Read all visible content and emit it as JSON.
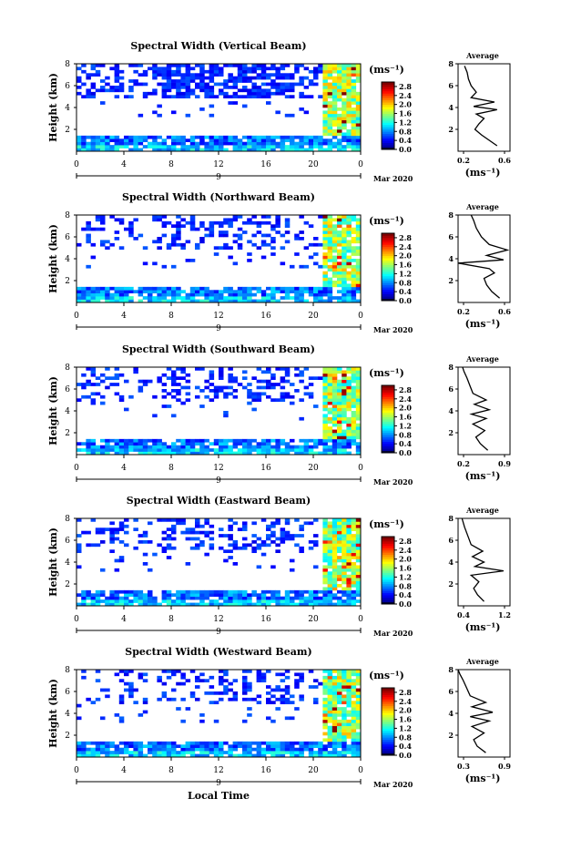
{
  "chart_data": [
    {
      "type": "heatmap",
      "title": "Spectral Width (Vertical Beam)",
      "ylabel": "Height (km)",
      "xlim": [
        0,
        24
      ],
      "ylim": [
        0,
        8
      ],
      "x_ticks": [
        "0",
        "4",
        "8",
        "12",
        "16",
        "20",
        "0"
      ],
      "y_ticks": [
        "2",
        "4",
        "6",
        "8"
      ],
      "date_label": "9",
      "month_label": "Mar 2020",
      "colorbar": {
        "unit": "(ms⁻¹)",
        "ticks": [
          "0.0",
          "0.4",
          "0.8",
          "1.2",
          "1.6",
          "2.0",
          "2.4",
          "2.8"
        ],
        "range": [
          0,
          3.0
        ]
      },
      "average": {
        "title": "Average",
        "xlabel": "(ms⁻¹)",
        "x_ticks": [
          "0.2",
          "0.6"
        ],
        "xlim": [
          0.2,
          0.6
        ],
        "y_ticks": [
          "2",
          "4",
          "6",
          "8"
        ],
        "ylim": [
          0,
          8
        ],
        "profile": [
          [
            0.5,
            0.5
          ],
          [
            0.44,
            1.0
          ],
          [
            0.38,
            1.5
          ],
          [
            0.33,
            2.0
          ],
          [
            0.36,
            2.5
          ],
          [
            0.4,
            3.0
          ],
          [
            0.34,
            3.4
          ],
          [
            0.5,
            3.8
          ],
          [
            0.32,
            4.1
          ],
          [
            0.48,
            4.5
          ],
          [
            0.3,
            4.9
          ],
          [
            0.34,
            5.4
          ],
          [
            0.3,
            6.0
          ],
          [
            0.28,
            6.6
          ],
          [
            0.27,
            7.2
          ],
          [
            0.25,
            7.8
          ]
        ]
      }
    },
    {
      "type": "heatmap",
      "title": "Spectral Width (Northward Beam)",
      "ylabel": "Height (km)",
      "xlim": [
        0,
        24
      ],
      "ylim": [
        0,
        8
      ],
      "x_ticks": [
        "0",
        "4",
        "8",
        "12",
        "16",
        "20",
        "0"
      ],
      "y_ticks": [
        "2",
        "4",
        "6",
        "8"
      ],
      "date_label": "9",
      "month_label": "Mar 2020",
      "colorbar": {
        "unit": "(ms⁻¹)",
        "ticks": [
          "0.0",
          "0.4",
          "0.8",
          "1.2",
          "1.6",
          "2.0",
          "2.4",
          "2.8"
        ],
        "range": [
          0,
          3.0
        ]
      },
      "average": {
        "title": "Average",
        "xlabel": "(ms⁻¹)",
        "x_ticks": [
          "0.2",
          "0.6"
        ],
        "xlim": [
          0.2,
          0.6
        ],
        "y_ticks": [
          "2",
          "4",
          "6",
          "8"
        ],
        "ylim": [
          0,
          8
        ],
        "profile": [
          [
            0.52,
            0.4
          ],
          [
            0.46,
            1.0
          ],
          [
            0.42,
            1.6
          ],
          [
            0.4,
            2.2
          ],
          [
            0.48,
            2.7
          ],
          [
            0.44,
            3.1
          ],
          [
            0.2,
            3.6
          ],
          [
            0.55,
            3.9
          ],
          [
            0.42,
            4.3
          ],
          [
            0.58,
            4.8
          ],
          [
            0.44,
            5.3
          ],
          [
            0.38,
            6.0
          ],
          [
            0.34,
            6.8
          ],
          [
            0.32,
            7.5
          ],
          [
            0.3,
            8.0
          ]
        ]
      }
    },
    {
      "type": "heatmap",
      "title": "Spectral Width (Southward Beam)",
      "ylabel": "Height (km)",
      "xlim": [
        0,
        24
      ],
      "ylim": [
        0,
        8
      ],
      "x_ticks": [
        "0",
        "4",
        "8",
        "12",
        "16",
        "20",
        "0"
      ],
      "y_ticks": [
        "2",
        "4",
        "6",
        "8"
      ],
      "date_label": "9",
      "month_label": "Mar 2020",
      "colorbar": {
        "unit": "(ms⁻¹)",
        "ticks": [
          "0.0",
          "0.4",
          "0.8",
          "1.2",
          "1.6",
          "2.0",
          "2.4",
          "2.8"
        ],
        "range": [
          0,
          3.0
        ]
      },
      "average": {
        "title": "Average",
        "xlabel": "(ms⁻¹)",
        "x_ticks": [
          "0.2",
          "0.9"
        ],
        "xlim": [
          0.2,
          0.9
        ],
        "y_ticks": [
          "2",
          "4",
          "6",
          "8"
        ],
        "ylim": [
          0,
          8
        ],
        "profile": [
          [
            0.6,
            0.4
          ],
          [
            0.5,
            1.0
          ],
          [
            0.44,
            1.6
          ],
          [
            0.56,
            2.2
          ],
          [
            0.4,
            2.8
          ],
          [
            0.58,
            3.3
          ],
          [
            0.38,
            3.7
          ],
          [
            0.62,
            4.1
          ],
          [
            0.42,
            4.6
          ],
          [
            0.58,
            5.0
          ],
          [
            0.4,
            5.6
          ],
          [
            0.36,
            6.3
          ],
          [
            0.32,
            7.0
          ],
          [
            0.28,
            7.6
          ],
          [
            0.26,
            8.0
          ]
        ]
      }
    },
    {
      "type": "heatmap",
      "title": "Spectral Width (Eastward Beam)",
      "ylabel": "Height (km)",
      "xlim": [
        0,
        24
      ],
      "ylim": [
        0,
        8
      ],
      "x_ticks": [
        "0",
        "4",
        "8",
        "12",
        "16",
        "20",
        "0"
      ],
      "y_ticks": [
        "2",
        "4",
        "6",
        "8"
      ],
      "date_label": "9",
      "month_label": "Mar 2020",
      "colorbar": {
        "unit": "(ms⁻¹)",
        "ticks": [
          "0.0",
          "0.4",
          "0.8",
          "1.2",
          "1.6",
          "2.0",
          "2.4",
          "2.8"
        ],
        "range": [
          0,
          3.0
        ]
      },
      "average": {
        "title": "Average",
        "xlabel": "(ms⁻¹)",
        "x_ticks": [
          "0.4",
          "1.2"
        ],
        "xlim": [
          0.4,
          1.2
        ],
        "y_ticks": [
          "2",
          "4",
          "6",
          "8"
        ],
        "ylim": [
          0,
          8
        ],
        "profile": [
          [
            0.8,
            0.4
          ],
          [
            0.7,
            1.0
          ],
          [
            0.64,
            1.6
          ],
          [
            0.72,
            2.2
          ],
          [
            0.6,
            2.8
          ],
          [
            1.1,
            3.2
          ],
          [
            0.66,
            3.6
          ],
          [
            0.8,
            4.0
          ],
          [
            0.62,
            4.5
          ],
          [
            0.78,
            5.0
          ],
          [
            0.6,
            5.6
          ],
          [
            0.55,
            6.4
          ],
          [
            0.5,
            7.2
          ],
          [
            0.46,
            8.0
          ]
        ]
      }
    },
    {
      "type": "heatmap",
      "title": "Spectral Width (Westward Beam)",
      "ylabel": "Height (km)",
      "xlabel": "Local Time",
      "xlim": [
        0,
        24
      ],
      "ylim": [
        0,
        8
      ],
      "x_ticks": [
        "0",
        "4",
        "8",
        "12",
        "16",
        "20",
        "0"
      ],
      "y_ticks": [
        "2",
        "4",
        "6",
        "8"
      ],
      "date_label": "9",
      "month_label": "Mar 2020",
      "colorbar": {
        "unit": "(ms⁻¹)",
        "ticks": [
          "0.0",
          "0.4",
          "0.8",
          "1.2",
          "1.6",
          "2.0",
          "2.4",
          "2.8"
        ],
        "range": [
          0,
          3.0
        ]
      },
      "average": {
        "title": "Average",
        "xlabel": "(ms⁻¹)",
        "x_ticks": [
          "0.3",
          "0.9"
        ],
        "xlim": [
          0.3,
          0.9
        ],
        "y_ticks": [
          "2",
          "4",
          "6",
          "8"
        ],
        "ylim": [
          0,
          8
        ],
        "profile": [
          [
            0.62,
            0.4
          ],
          [
            0.52,
            1.0
          ],
          [
            0.48,
            1.6
          ],
          [
            0.6,
            2.2
          ],
          [
            0.46,
            2.8
          ],
          [
            0.66,
            3.3
          ],
          [
            0.44,
            3.7
          ],
          [
            0.7,
            4.1
          ],
          [
            0.46,
            4.6
          ],
          [
            0.62,
            5.0
          ],
          [
            0.44,
            5.6
          ],
          [
            0.4,
            6.3
          ],
          [
            0.36,
            7.0
          ],
          [
            0.32,
            7.6
          ],
          [
            0.3,
            8.0
          ]
        ]
      }
    }
  ]
}
